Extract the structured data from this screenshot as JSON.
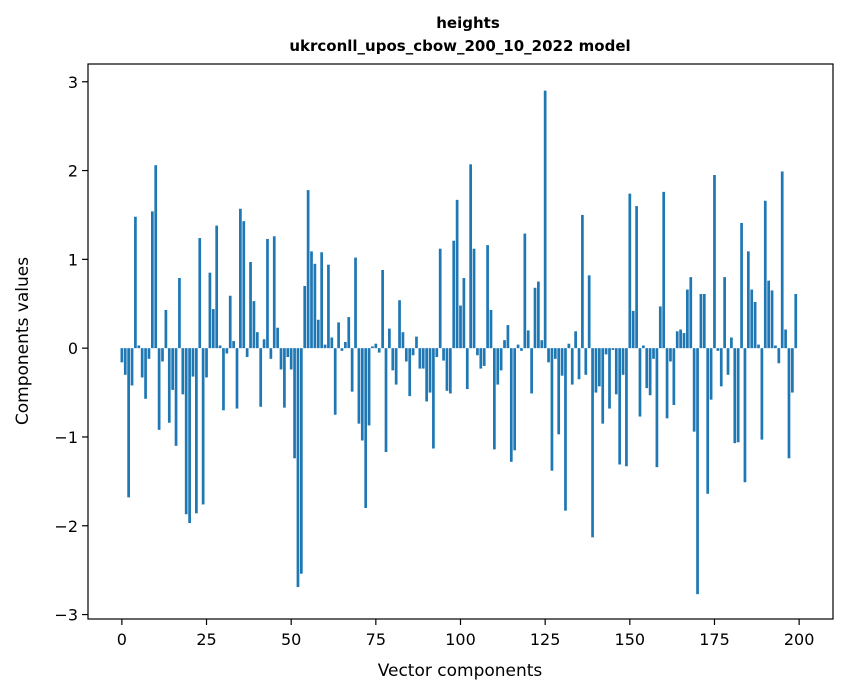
{
  "chart_data": {
    "type": "bar",
    "title": "heights",
    "subtitle": "ukrconll_upos_cbow_200_10_2022 model",
    "xlabel": "Vector components",
    "ylabel": "Components values",
    "xlim": [
      -10,
      210
    ],
    "ylim": [
      -3.05,
      3.2
    ],
    "xticks": [
      0,
      25,
      50,
      75,
      100,
      125,
      150,
      175,
      200
    ],
    "yticks": [
      -3,
      -2,
      -1,
      0,
      1,
      2,
      3
    ],
    "ytick_labels": [
      "−3",
      "−2",
      "−1",
      "0",
      "1",
      "2",
      "3"
    ],
    "grid": false,
    "bar_color": "#1f77b4",
    "x": [
      0,
      1,
      2,
      3,
      4,
      5,
      6,
      7,
      8,
      9,
      10,
      11,
      12,
      13,
      14,
      15,
      16,
      17,
      18,
      19,
      20,
      21,
      22,
      23,
      24,
      25,
      26,
      27,
      28,
      29,
      30,
      31,
      32,
      33,
      34,
      35,
      36,
      37,
      38,
      39,
      40,
      41,
      42,
      43,
      44,
      45,
      46,
      47,
      48,
      49,
      50,
      51,
      52,
      53,
      54,
      55,
      56,
      57,
      58,
      59,
      60,
      61,
      62,
      63,
      64,
      65,
      66,
      67,
      68,
      69,
      70,
      71,
      72,
      73,
      74,
      75,
      76,
      77,
      78,
      79,
      80,
      81,
      82,
      83,
      84,
      85,
      86,
      87,
      88,
      89,
      90,
      91,
      92,
      93,
      94,
      95,
      96,
      97,
      98,
      99,
      100,
      101,
      102,
      103,
      104,
      105,
      106,
      107,
      108,
      109,
      110,
      111,
      112,
      113,
      114,
      115,
      116,
      117,
      118,
      119,
      120,
      121,
      122,
      123,
      124,
      125,
      126,
      127,
      128,
      129,
      130,
      131,
      132,
      133,
      134,
      135,
      136,
      137,
      138,
      139,
      140,
      141,
      142,
      143,
      144,
      145,
      146,
      147,
      148,
      149,
      150,
      151,
      152,
      153,
      154,
      155,
      156,
      157,
      158,
      159,
      160,
      161,
      162,
      163,
      164,
      165,
      166,
      167,
      168,
      169,
      170,
      171,
      172,
      173,
      174,
      175,
      176,
      177,
      178,
      179,
      180,
      181,
      182,
      183,
      184,
      185,
      186,
      187,
      188,
      189,
      190,
      191,
      192,
      193,
      194,
      195,
      196,
      197,
      198,
      199
    ],
    "values": [
      -0.16,
      -0.3,
      -1.68,
      -0.42,
      1.48,
      0.03,
      -0.33,
      -0.57,
      -0.12,
      1.54,
      2.06,
      -0.92,
      -0.15,
      0.43,
      -0.84,
      -0.47,
      -1.1,
      0.79,
      -0.52,
      -1.87,
      -1.97,
      -0.32,
      -1.86,
      1.24,
      -1.76,
      -0.33,
      0.85,
      0.44,
      1.38,
      0.03,
      -0.7,
      -0.06,
      0.59,
      0.08,
      -0.68,
      1.57,
      1.43,
      -0.1,
      0.97,
      0.53,
      0.18,
      -0.66,
      0.1,
      1.23,
      -0.12,
      1.26,
      0.23,
      -0.24,
      -0.67,
      -0.1,
      -0.24,
      -1.24,
      -2.69,
      -2.54,
      0.7,
      1.78,
      1.09,
      0.95,
      0.32,
      1.08,
      0.04,
      0.94,
      0.12,
      -0.75,
      0.29,
      -0.03,
      0.07,
      0.35,
      -0.49,
      1.02,
      -0.85,
      -1.04,
      -1.8,
      -0.87,
      0.02,
      0.05,
      -0.05,
      0.88,
      -1.17,
      0.22,
      -0.25,
      -0.41,
      0.54,
      0.18,
      -0.15,
      -0.54,
      -0.08,
      0.13,
      -0.23,
      -0.23,
      -0.6,
      -0.5,
      -1.13,
      -0.1,
      1.12,
      -0.14,
      -0.48,
      -0.51,
      1.21,
      1.67,
      0.48,
      0.79,
      -0.46,
      2.07,
      1.12,
      -0.08,
      -0.23,
      -0.2,
      1.16,
      0.43,
      -1.14,
      -0.41,
      -0.25,
      0.09,
      0.26,
      -1.28,
      -1.15,
      0.04,
      -0.03,
      1.29,
      0.2,
      -0.51,
      0.68,
      0.75,
      0.09,
      2.9,
      -0.16,
      -1.38,
      -0.12,
      -0.97,
      -0.31,
      -1.83,
      0.05,
      -0.41,
      0.19,
      -0.35,
      1.5,
      -0.3,
      0.82,
      -2.13,
      -0.5,
      -0.43,
      -0.85,
      -0.07,
      -0.68,
      -0.02,
      -0.52,
      -1.31,
      -0.3,
      -1.33,
      1.74,
      0.42,
      1.6,
      -0.77,
      0.03,
      -0.45,
      -0.53,
      -0.12,
      -1.34,
      0.47,
      1.76,
      -0.79,
      -0.15,
      -0.64,
      0.19,
      0.21,
      0.17,
      0.66,
      0.8,
      -0.94,
      -2.77,
      0.61,
      0.61,
      -1.64,
      -0.58,
      1.95,
      -0.03,
      -0.43,
      0.8,
      -0.3,
      0.12,
      -1.07,
      -1.06,
      1.41,
      -1.51,
      1.09,
      0.66,
      0.52,
      0.04,
      -1.03,
      1.66,
      0.76,
      0.65,
      0.03,
      -0.17,
      1.99,
      0.21,
      -1.24,
      -0.5,
      0.61
    ]
  }
}
